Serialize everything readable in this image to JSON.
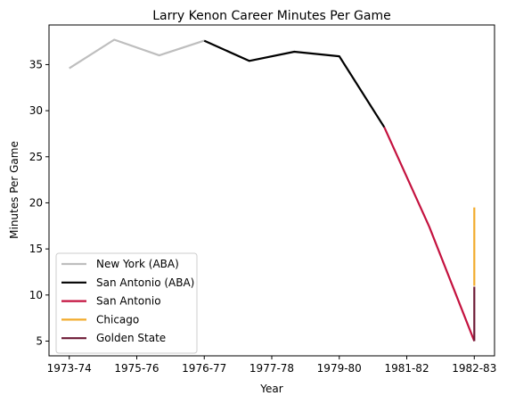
{
  "chart_data": {
    "type": "line",
    "title": "Larry Kenon Career Minutes Per Game",
    "xlabel": "Year",
    "ylabel": "Minutes Per Game",
    "x_tick_labels": [
      "1973-74",
      "1975-76",
      "1976-77",
      "1977-78",
      "1979-80",
      "1981-82",
      "1982-83"
    ],
    "x_tick_values": [
      0,
      1.5,
      3,
      4.5,
      6,
      7.5,
      9
    ],
    "xlim": [
      -0.45,
      9.45
    ],
    "ylim": [
      3.4,
      39.3
    ],
    "y_ticks": [
      5,
      10,
      15,
      20,
      25,
      30,
      35
    ],
    "grid": false,
    "legend_position": "lower-left",
    "series": [
      {
        "name": "New York (ABA)",
        "color": "#bebebe",
        "x": [
          0,
          1,
          2,
          3
        ],
        "y": [
          34.6,
          37.7,
          36.0,
          37.6
        ]
      },
      {
        "name": "San Antonio (ABA)",
        "color": "#000000",
        "x": [
          3,
          4,
          5,
          6,
          7
        ],
        "y": [
          37.6,
          35.4,
          36.4,
          35.9,
          28.2
        ]
      },
      {
        "name": "San Antonio",
        "color": "#c4123f",
        "x": [
          7,
          8,
          9
        ],
        "y": [
          28.2,
          17.4,
          5.0
        ]
      },
      {
        "name": "Chicago",
        "color": "#f2ab2c",
        "x": [
          9,
          9
        ],
        "y": [
          19.5,
          11.0
        ]
      },
      {
        "name": "Golden State",
        "color": "#6d1a36",
        "x": [
          9,
          9
        ],
        "y": [
          5.0,
          10.9
        ]
      }
    ]
  }
}
